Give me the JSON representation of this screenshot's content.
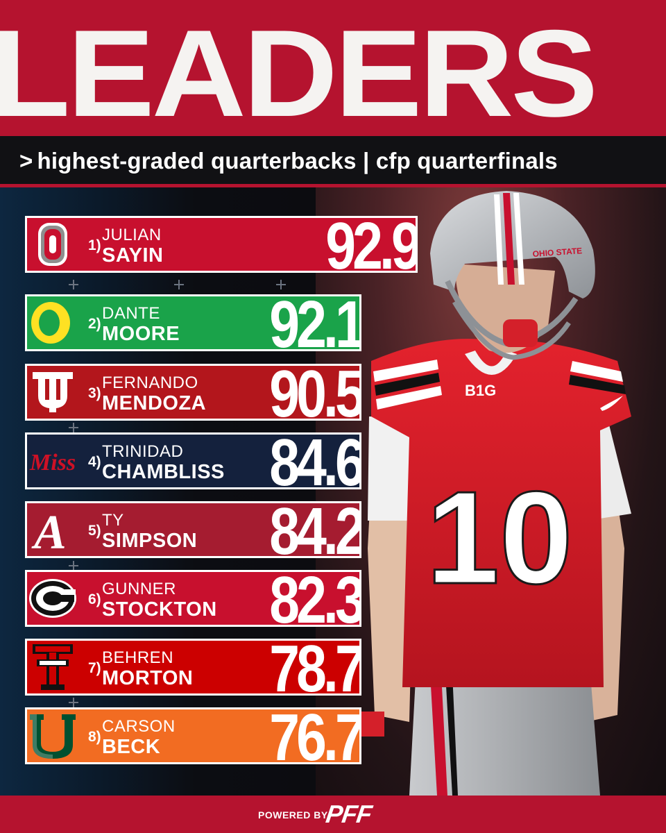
{
  "header": {
    "title": "LEADERS",
    "subtitle_arrow": ">",
    "subtitle": "highest-graded quarterbacks | cfp quarterfinals"
  },
  "colors": {
    "header_red": "#b5132f",
    "subtitle_bg": "#111114"
  },
  "player_art": {
    "jersey_number": "10",
    "helmet_text": "OHIO STATE",
    "patch_text": "B1G"
  },
  "leaders": [
    {
      "rank": "1)",
      "first": "JULIAN",
      "last": "SAYIN",
      "grade": "92.9",
      "school_logo": "ohio-state-block-o-logo",
      "logo_text": "",
      "bg": "#c8102e"
    },
    {
      "rank": "2)",
      "first": "DANTE",
      "last": "MOORE",
      "grade": "92.1",
      "school_logo": "oregon-o-logo",
      "logo_text": "",
      "bg": "#1aa34a"
    },
    {
      "rank": "3)",
      "first": "FERNANDO",
      "last": "MENDOZA",
      "grade": "90.5",
      "school_logo": "indiana-iu-logo",
      "logo_text": "",
      "bg": "#b3161c"
    },
    {
      "rank": "4)",
      "first": "TRINIDAD",
      "last": "CHAMBLISS",
      "grade": "84.6",
      "school_logo": "ole-miss-script-logo",
      "logo_text": "Miss",
      "bg": "#14213d"
    },
    {
      "rank": "5)",
      "first": "TY",
      "last": "SIMPSON",
      "grade": "84.2",
      "school_logo": "alabama-script-a-logo",
      "logo_text": "A",
      "bg": "#a51c30"
    },
    {
      "rank": "6)",
      "first": "GUNNER",
      "last": "STOCKTON",
      "grade": "82.3",
      "school_logo": "georgia-g-logo",
      "logo_text": "",
      "bg": "#c8102e"
    },
    {
      "rank": "7)",
      "first": "BEHREN",
      "last": "MORTON",
      "grade": "78.7",
      "school_logo": "texas-tech-double-t-logo",
      "logo_text": "",
      "bg": "#cc0000"
    },
    {
      "rank": "8)",
      "first": "CARSON",
      "last": "BECK",
      "grade": "76.7",
      "school_logo": "miami-u-logo",
      "logo_text": "",
      "bg": "#f26c22"
    }
  ],
  "footer": {
    "powered_by": "POWERED BY",
    "brand": "PFF"
  }
}
